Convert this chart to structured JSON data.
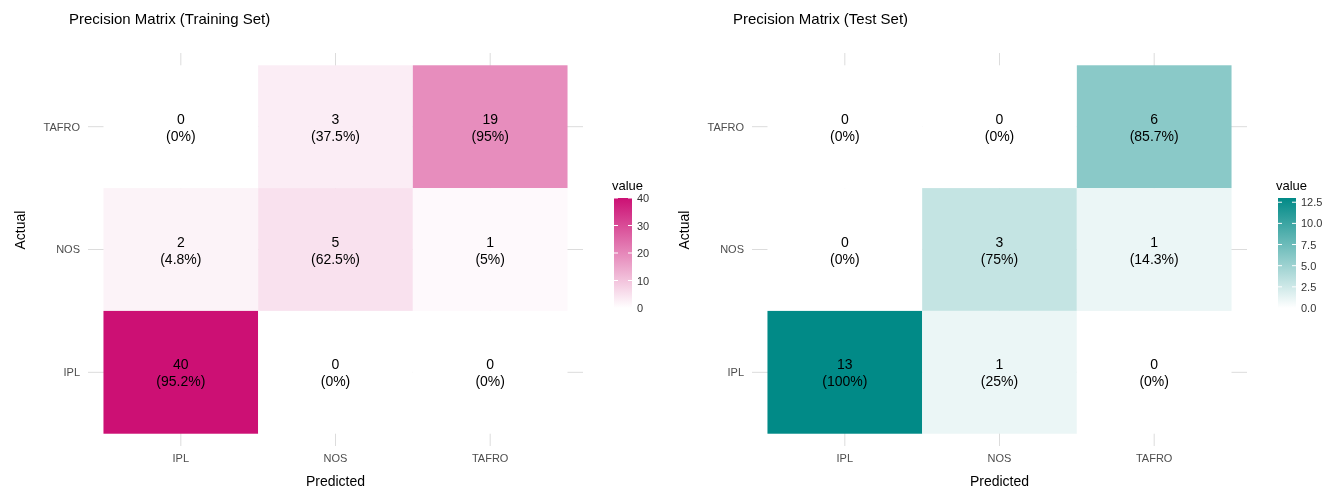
{
  "chart_data": [
    {
      "type": "heatmap",
      "title": "Precision Matrix (Training Set)",
      "xlabel": "Predicted",
      "ylabel": "Actual",
      "clabel": "value",
      "categories": [
        "IPL",
        "NOS",
        "TAFRO"
      ],
      "y_categories": [
        "TAFRO",
        "NOS",
        "IPL"
      ],
      "cells": [
        [
          0,
          3,
          19
        ],
        [
          2,
          5,
          1
        ],
        [
          40,
          0,
          0
        ]
      ],
      "cell_labels": [
        [
          "0\n(0%)",
          "3\n(37.5%)",
          "19\n(95%)"
        ],
        [
          "2\n(4.8%)",
          "5\n(62.5%)",
          "1\n(5%)"
        ],
        [
          "40\n(95.2%)",
          "0\n(0%)",
          "0\n(0%)"
        ]
      ],
      "clim": [
        0,
        40
      ],
      "cticks": [
        0,
        10,
        20,
        30,
        40
      ],
      "color": "#cc1074",
      "grid": true
    },
    {
      "type": "heatmap",
      "title": "Precision Matrix (Test Set)",
      "xlabel": "Predicted",
      "ylabel": "Actual",
      "clabel": "value",
      "categories": [
        "IPL",
        "NOS",
        "TAFRO"
      ],
      "y_categories": [
        "TAFRO",
        "NOS",
        "IPL"
      ],
      "cells": [
        [
          0,
          0,
          6
        ],
        [
          0,
          3,
          1
        ],
        [
          13,
          1,
          0
        ]
      ],
      "cell_labels": [
        [
          "0\n(0%)",
          "0\n(0%)",
          "6\n(85.7%)"
        ],
        [
          "0\n(0%)",
          "3\n(75%)",
          "1\n(14.3%)"
        ],
        [
          "13\n(100%)",
          "1\n(25%)",
          "0\n(0%)"
        ]
      ],
      "clim": [
        0,
        13
      ],
      "cticks": [
        {
          "value": 0,
          "label": "0.0"
        },
        {
          "value": 2.5,
          "label": "2.5"
        },
        {
          "value": 5,
          "label": "5.0"
        },
        {
          "value": 7.5,
          "label": "7.5"
        },
        {
          "value": 10,
          "label": "10.0"
        },
        {
          "value": 12.5,
          "label": "12.5"
        }
      ],
      "color": "#018a87",
      "grid": true
    }
  ]
}
